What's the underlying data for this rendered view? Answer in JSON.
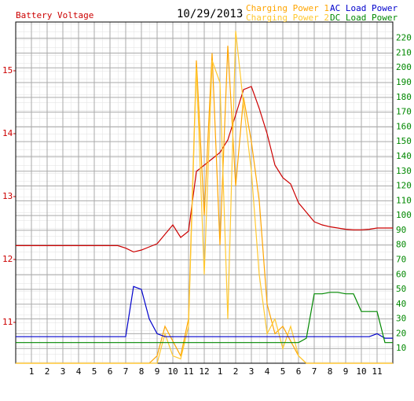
{
  "chart_data": {
    "type": "line",
    "title": "10/29/2013",
    "y_label": "Battery Voltage",
    "x": [
      0,
      0.5,
      1,
      1.5,
      2,
      2.5,
      3,
      3.5,
      4,
      4.5,
      5,
      5.5,
      6,
      6.5,
      7,
      7.5,
      8,
      8.5,
      9,
      9.5,
      10,
      10.5,
      11,
      11.5,
      12,
      12.5,
      13,
      13.5,
      14,
      14.5,
      15,
      15.5,
      16,
      16.5,
      17,
      17.5,
      18,
      18.5,
      19,
      19.5,
      20,
      20.5,
      21,
      21.5,
      22,
      22.5,
      23,
      23.5,
      24
    ],
    "xlim": [
      0,
      24
    ],
    "xticks": [
      1,
      2,
      3,
      4,
      5,
      6,
      7,
      8,
      9,
      10,
      11,
      12,
      {
        "value": 13,
        "label": "1"
      },
      {
        "value": 14,
        "label": "2"
      },
      {
        "value": 15,
        "label": "3"
      },
      {
        "value": 16,
        "label": "4"
      },
      {
        "value": 17,
        "label": "5"
      },
      {
        "value": 18,
        "label": "6"
      },
      {
        "value": 19,
        "label": "7"
      },
      {
        "value": 20,
        "label": "8"
      },
      {
        "value": 21,
        "label": "9"
      },
      {
        "value": 22,
        "label": "10"
      },
      {
        "value": 23,
        "label": "11"
      }
    ],
    "ylim": [
      10.35,
      15.775
    ],
    "yticks": [
      11,
      12,
      13,
      14,
      15
    ],
    "y2lim": [
      0,
      231
    ],
    "y2ticks": [
      10,
      20,
      30,
      40,
      50,
      60,
      70,
      80,
      90,
      100,
      110,
      120,
      130,
      140,
      150,
      160,
      170,
      180,
      190,
      200,
      210,
      220
    ],
    "grid": true,
    "series": [
      {
        "name": "Battery Voltage",
        "color": "#cc0000",
        "values": [
          12.22,
          12.22,
          12.22,
          12.22,
          12.22,
          12.22,
          12.22,
          12.22,
          12.22,
          12.22,
          12.22,
          12.22,
          12.22,
          12.22,
          12.18,
          12.12,
          12.15,
          12.2,
          12.25,
          12.4,
          12.55,
          12.35,
          12.45,
          13.4,
          13.5,
          13.6,
          13.7,
          13.9,
          14.3,
          14.7,
          14.75,
          14.4,
          14.0,
          13.5,
          13.3,
          13.2,
          12.9,
          12.75,
          12.6,
          12.55,
          12.52,
          12.5,
          12.48,
          12.47,
          12.47,
          12.48,
          12.5,
          12.5,
          12.5
        ]
      },
      {
        "name": "Charging Power 1",
        "color": "#ffa500",
        "axis": "y2",
        "values": [
          0,
          0,
          0,
          0,
          0,
          0,
          0,
          0,
          0,
          0,
          0,
          0,
          0,
          0,
          0,
          0,
          0,
          0,
          5,
          25,
          15,
          5,
          30,
          205,
          100,
          210,
          80,
          215,
          120,
          180,
          150,
          110,
          40,
          20,
          25,
          15,
          5,
          0,
          0,
          0,
          0,
          0,
          0,
          0,
          0,
          0,
          0,
          0,
          0
        ]
      },
      {
        "name": "Charging Power 2",
        "color": "#ffc830",
        "axis": "y2",
        "values": [
          0,
          0,
          0,
          0,
          0,
          0,
          0,
          0,
          0,
          0,
          0,
          0,
          0,
          0,
          0,
          0,
          0,
          0,
          0,
          20,
          5,
          3,
          25,
          200,
          60,
          205,
          190,
          30,
          225,
          175,
          130,
          60,
          20,
          30,
          10,
          25,
          5,
          0,
          0,
          0,
          0,
          0,
          0,
          0,
          0,
          0,
          0,
          0,
          0
        ]
      },
      {
        "name": "AC Load Power",
        "color": "#0000cc",
        "axis": "y2",
        "values": [
          18,
          18,
          18,
          18,
          18,
          18,
          18,
          18,
          18,
          18,
          18,
          18,
          18,
          18,
          18,
          52,
          50,
          30,
          20,
          18,
          18,
          18,
          18,
          18,
          18,
          18,
          18,
          18,
          18,
          18,
          18,
          18,
          18,
          18,
          18,
          18,
          18,
          18,
          18,
          18,
          18,
          18,
          18,
          18,
          18,
          18,
          20,
          17,
          17
        ]
      },
      {
        "name": "DC Load Power",
        "color": "#008800",
        "axis": "y2",
        "values": [
          14,
          14,
          14,
          14,
          14,
          14,
          14,
          14,
          14,
          14,
          14,
          14,
          14,
          14,
          14,
          14,
          14,
          14,
          14,
          14,
          14,
          14,
          14,
          14,
          14,
          14,
          14,
          14,
          14,
          14,
          14,
          14,
          14,
          14,
          14,
          14,
          14,
          17,
          47,
          47,
          48,
          48,
          47,
          47,
          35,
          35,
          35,
          14,
          14
        ]
      }
    ]
  }
}
